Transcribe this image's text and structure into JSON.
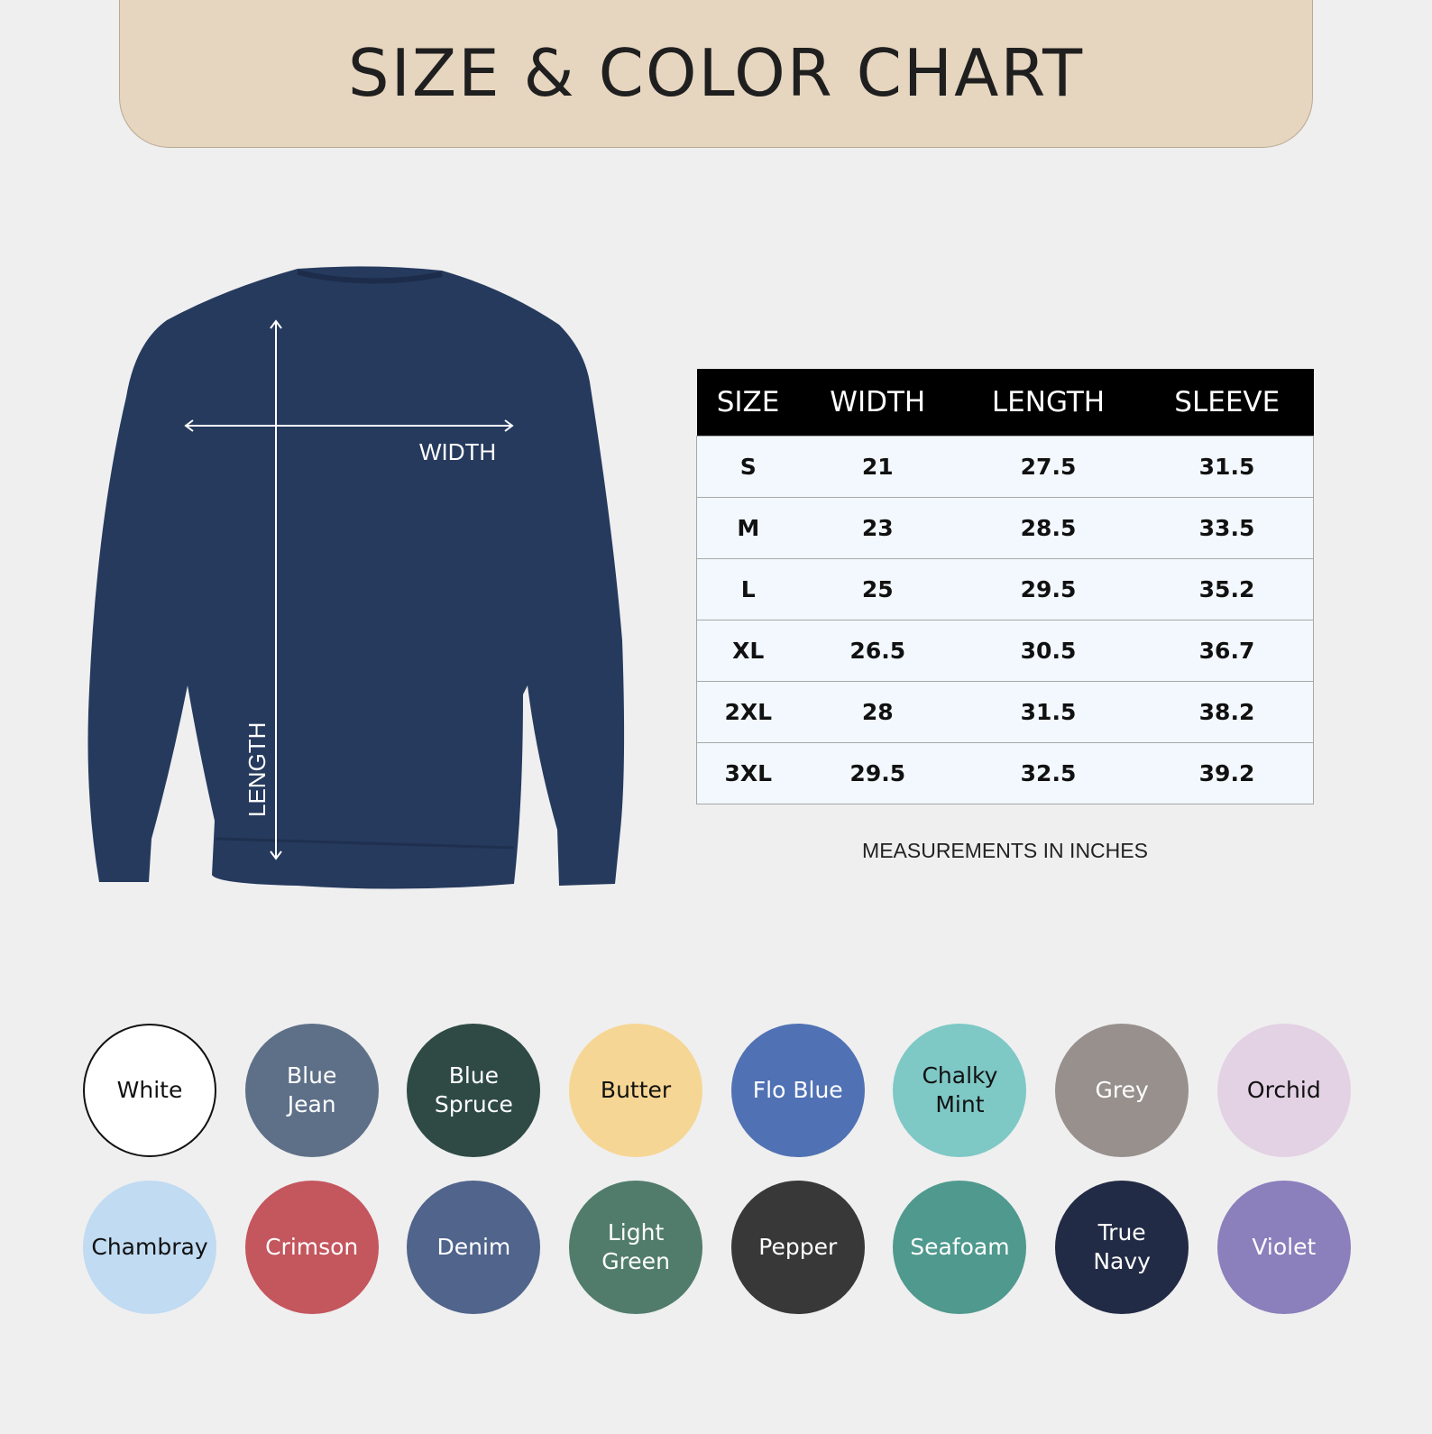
{
  "header": {
    "title": "SIZE & COLOR CHART"
  },
  "diagram": {
    "width_label": "WIDTH",
    "length_label": "LENGTH",
    "garment_color": "#263a5e"
  },
  "size_table": {
    "columns": [
      "SIZE",
      "WIDTH",
      "LENGTH",
      "SLEEVE"
    ],
    "rows": [
      [
        "S",
        "21",
        "27.5",
        "31.5"
      ],
      [
        "M",
        "23",
        "28.5",
        "33.5"
      ],
      [
        "L",
        "25",
        "29.5",
        "35.2"
      ],
      [
        "XL",
        "26.5",
        "30.5",
        "36.7"
      ],
      [
        "2XL",
        "28",
        "31.5",
        "38.2"
      ],
      [
        "3XL",
        "29.5",
        "32.5",
        "39.2"
      ]
    ],
    "note": "MEASUREMENTS IN INCHES"
  },
  "colors": [
    {
      "name": "White",
      "hex": "#ffffff",
      "text": "#111111"
    },
    {
      "name": "Blue\nJean",
      "hex": "#5e7088",
      "text": "#ffffff"
    },
    {
      "name": "Blue\nSpruce",
      "hex": "#2f4a45",
      "text": "#ffffff"
    },
    {
      "name": "Butter",
      "hex": "#f6d694",
      "text": "#111111"
    },
    {
      "name": "Flo Blue",
      "hex": "#5072b4",
      "text": "#ffffff"
    },
    {
      "name": "Chalky\nMint",
      "hex": "#7ec8c6",
      "text": "#111111"
    },
    {
      "name": "Grey",
      "hex": "#97908d",
      "text": "#ffffff"
    },
    {
      "name": "Orchid",
      "hex": "#e3d1e4",
      "text": "#111111"
    },
    {
      "name": "Chambray",
      "hex": "#c0dbf2",
      "text": "#111111"
    },
    {
      "name": "Crimson",
      "hex": "#c4565e",
      "text": "#ffffff"
    },
    {
      "name": "Denim",
      "hex": "#50648c",
      "text": "#ffffff"
    },
    {
      "name": "Light\nGreen",
      "hex": "#517c6c",
      "text": "#ffffff"
    },
    {
      "name": "Pepper",
      "hex": "#383838",
      "text": "#ffffff"
    },
    {
      "name": "Seafoam",
      "hex": "#4f998e",
      "text": "#ffffff"
    },
    {
      "name": "True\nNavy",
      "hex": "#222b45",
      "text": "#ffffff"
    },
    {
      "name": "Violet",
      "hex": "#8b7fbc",
      "text": "#ffffff"
    }
  ]
}
